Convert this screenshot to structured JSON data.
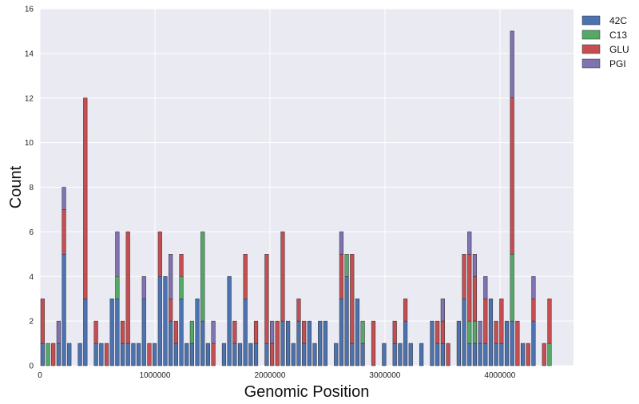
{
  "chart_data": {
    "type": "bar",
    "stacked": true,
    "xlabel": "Genomic Position",
    "ylabel": "Count",
    "xlim": [
      0,
      4640000
    ],
    "ylim": [
      0,
      16
    ],
    "xticks": [
      0,
      1000000,
      2000000,
      3000000,
      4000000
    ],
    "yticks": [
      0,
      2,
      4,
      6,
      8,
      10,
      12,
      14,
      16
    ],
    "grid": true,
    "legend": "top-right outside",
    "bin_width": 46400,
    "series": [
      {
        "name": "42C",
        "color": "#4C72B0",
        "values": [
          1,
          0,
          0,
          1,
          5,
          1,
          0,
          1,
          3,
          0,
          1,
          1,
          0,
          3,
          3,
          1,
          1,
          1,
          1,
          3,
          0,
          1,
          4,
          4,
          2,
          1,
          3,
          1,
          1,
          3,
          2,
          1,
          0,
          0,
          1,
          4,
          1,
          1,
          3,
          1,
          1,
          0,
          1,
          0,
          0,
          2,
          2,
          1,
          2,
          1,
          2,
          1,
          2,
          2,
          0,
          1,
          3,
          4,
          1,
          3,
          1,
          0,
          0,
          0,
          1,
          0,
          1,
          1,
          2,
          1,
          0,
          1,
          0,
          2,
          1,
          1,
          0,
          0,
          2,
          3,
          1,
          1,
          1,
          1,
          3,
          1,
          1,
          2,
          2,
          0,
          1,
          0,
          2,
          0,
          0,
          0
        ]
      },
      {
        "name": "C13",
        "color": "#55A868",
        "values": [
          0,
          1,
          0,
          0,
          0,
          0,
          0,
          0,
          0,
          0,
          0,
          0,
          0,
          0,
          1,
          0,
          0,
          0,
          0,
          0,
          0,
          0,
          0,
          0,
          0,
          0,
          1,
          0,
          1,
          0,
          4,
          0,
          0,
          0,
          0,
          0,
          0,
          0,
          0,
          0,
          0,
          0,
          0,
          0,
          0,
          0,
          0,
          0,
          0,
          0,
          0,
          0,
          0,
          0,
          0,
          0,
          0,
          1,
          0,
          0,
          1,
          0,
          0,
          0,
          0,
          0,
          0,
          0,
          0,
          0,
          0,
          0,
          0,
          0,
          0,
          0,
          0,
          0,
          0,
          0,
          1,
          1,
          0,
          0,
          0,
          0,
          0,
          0,
          3,
          0,
          0,
          0,
          0,
          0,
          0,
          1
        ]
      },
      {
        "name": "GLU",
        "color": "#C44E52",
        "values": [
          2,
          0,
          1,
          0,
          2,
          0,
          0,
          0,
          9,
          0,
          1,
          0,
          1,
          0,
          0,
          1,
          5,
          0,
          0,
          0,
          1,
          0,
          2,
          0,
          1,
          1,
          1,
          0,
          0,
          0,
          0,
          0,
          1,
          0,
          0,
          0,
          1,
          0,
          2,
          0,
          1,
          0,
          4,
          1,
          2,
          4,
          0,
          0,
          1,
          1,
          0,
          0,
          0,
          0,
          0,
          0,
          2,
          0,
          4,
          0,
          0,
          0,
          2,
          0,
          0,
          0,
          1,
          0,
          1,
          0,
          0,
          0,
          0,
          0,
          1,
          1,
          1,
          0,
          0,
          2,
          3,
          2,
          0,
          2,
          0,
          1,
          2,
          0,
          7,
          2,
          0,
          1,
          1,
          0,
          1,
          2
        ]
      },
      {
        "name": "PGI",
        "color": "#8172B2",
        "values": [
          0,
          0,
          0,
          1,
          1,
          0,
          0,
          0,
          0,
          0,
          0,
          0,
          0,
          0,
          2,
          0,
          0,
          0,
          0,
          1,
          0,
          0,
          0,
          0,
          2,
          0,
          0,
          0,
          0,
          0,
          0,
          0,
          1,
          0,
          0,
          0,
          0,
          0,
          0,
          0,
          0,
          0,
          0,
          1,
          0,
          0,
          0,
          0,
          0,
          0,
          0,
          0,
          0,
          0,
          0,
          0,
          1,
          0,
          0,
          0,
          0,
          0,
          0,
          0,
          0,
          0,
          0,
          0,
          0,
          0,
          0,
          0,
          0,
          0,
          0,
          1,
          0,
          0,
          0,
          0,
          1,
          1,
          1,
          1,
          0,
          0,
          0,
          0,
          3,
          0,
          0,
          0,
          1,
          0,
          0,
          0
        ]
      }
    ]
  }
}
